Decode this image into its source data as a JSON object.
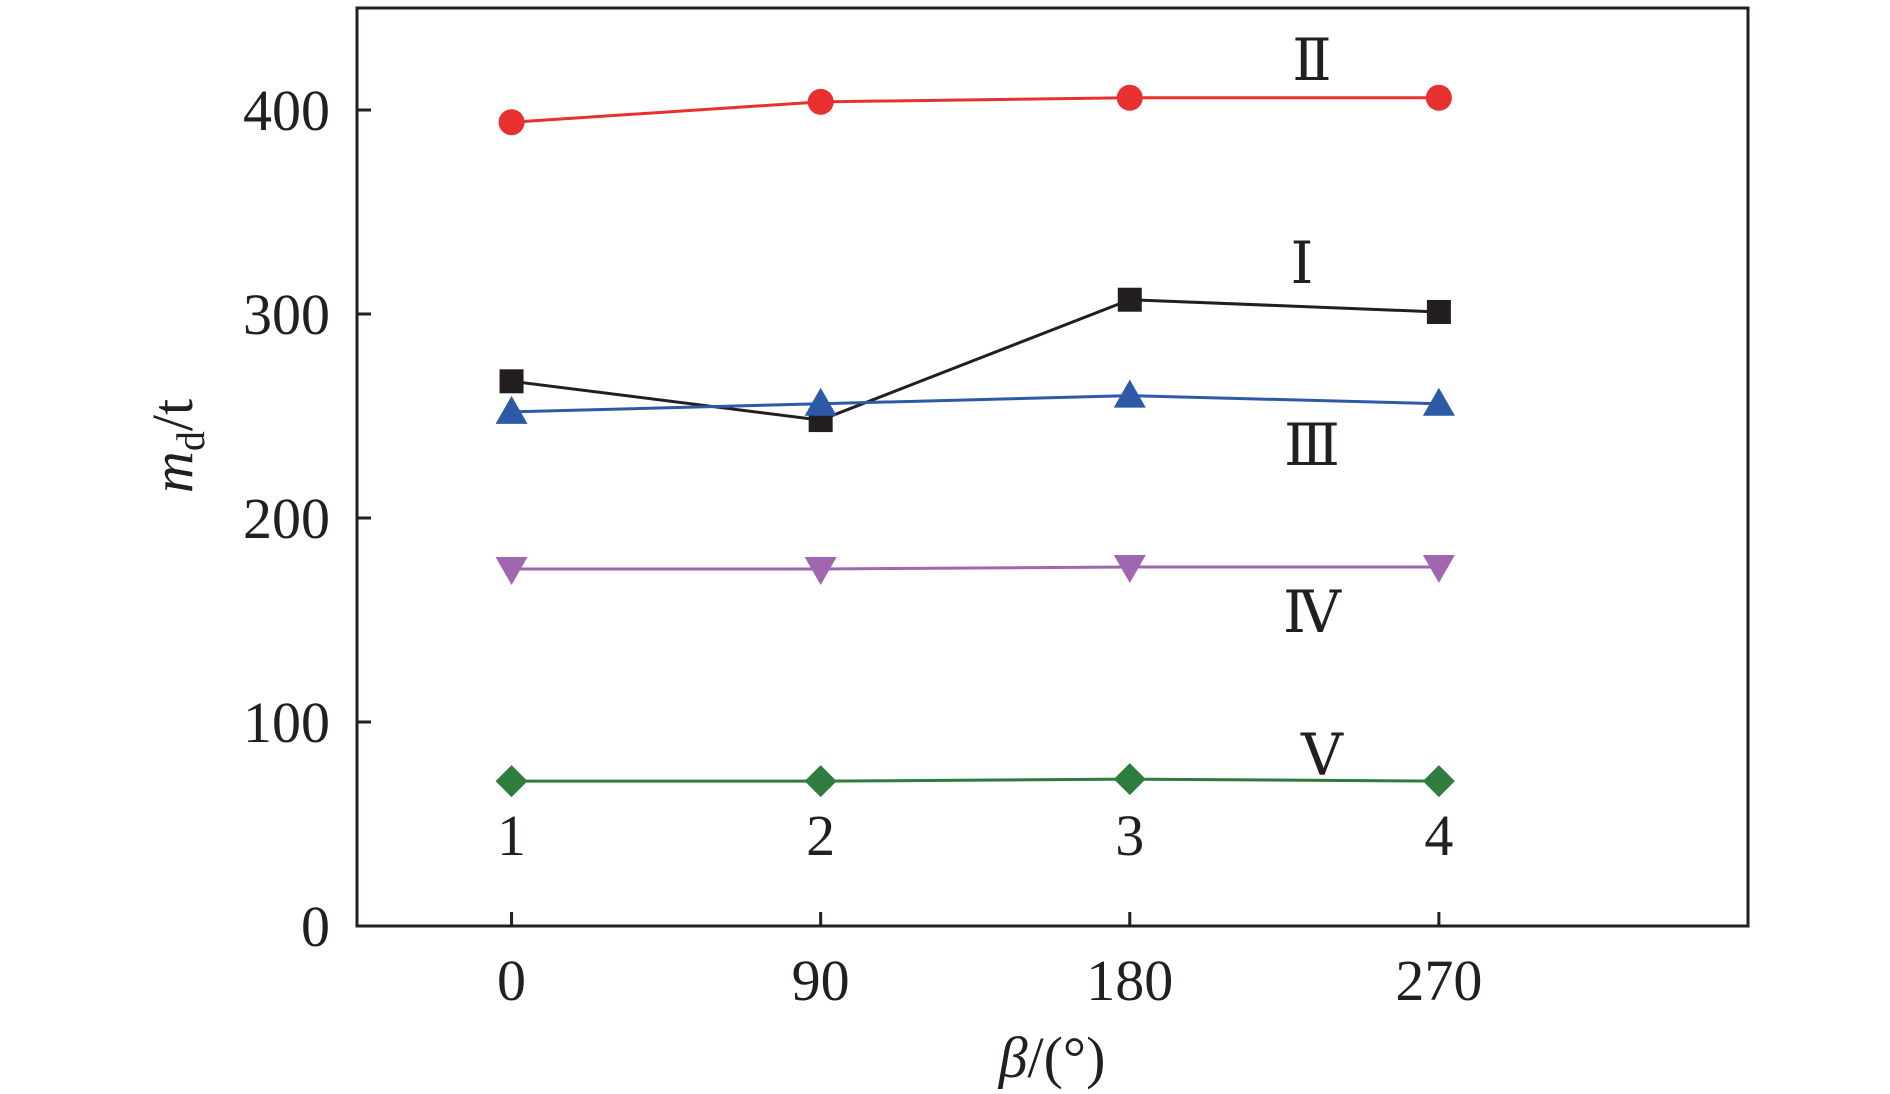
{
  "chart_data": {
    "type": "line",
    "xlabel": {
      "var": "β",
      "unit": "/(°)"
    },
    "ylabel": {
      "var": "m",
      "sub": "d",
      "unit": "/t"
    },
    "x": [
      0,
      90,
      180,
      270
    ],
    "xlim": [
      -45,
      360
    ],
    "ylim": [
      0,
      450
    ],
    "x_ticks": [
      0,
      90,
      180,
      270
    ],
    "y_ticks": [
      0,
      100,
      200,
      300,
      400
    ],
    "grid": false,
    "legend": "none",
    "position_labels": [
      "1",
      "2",
      "3",
      "4"
    ],
    "series": [
      {
        "name": "Ⅱ",
        "color": "#e8302e",
        "marker": "circle",
        "values": [
          394,
          404,
          406,
          406
        ]
      },
      {
        "name": "Ⅰ",
        "color": "#231f20",
        "marker": "square",
        "values": [
          267,
          248,
          307,
          301
        ]
      },
      {
        "name": "Ⅲ",
        "color": "#2d5aa7",
        "marker": "triangle-up",
        "values": [
          252,
          256,
          260,
          256
        ]
      },
      {
        "name": "Ⅳ",
        "color": "#a066b0",
        "marker": "triangle-down",
        "values": [
          175,
          175,
          176,
          176
        ]
      },
      {
        "name": "Ⅴ",
        "color": "#2e7d3f",
        "marker": "diamond",
        "values": [
          71,
          71,
          72,
          71
        ]
      }
    ]
  }
}
